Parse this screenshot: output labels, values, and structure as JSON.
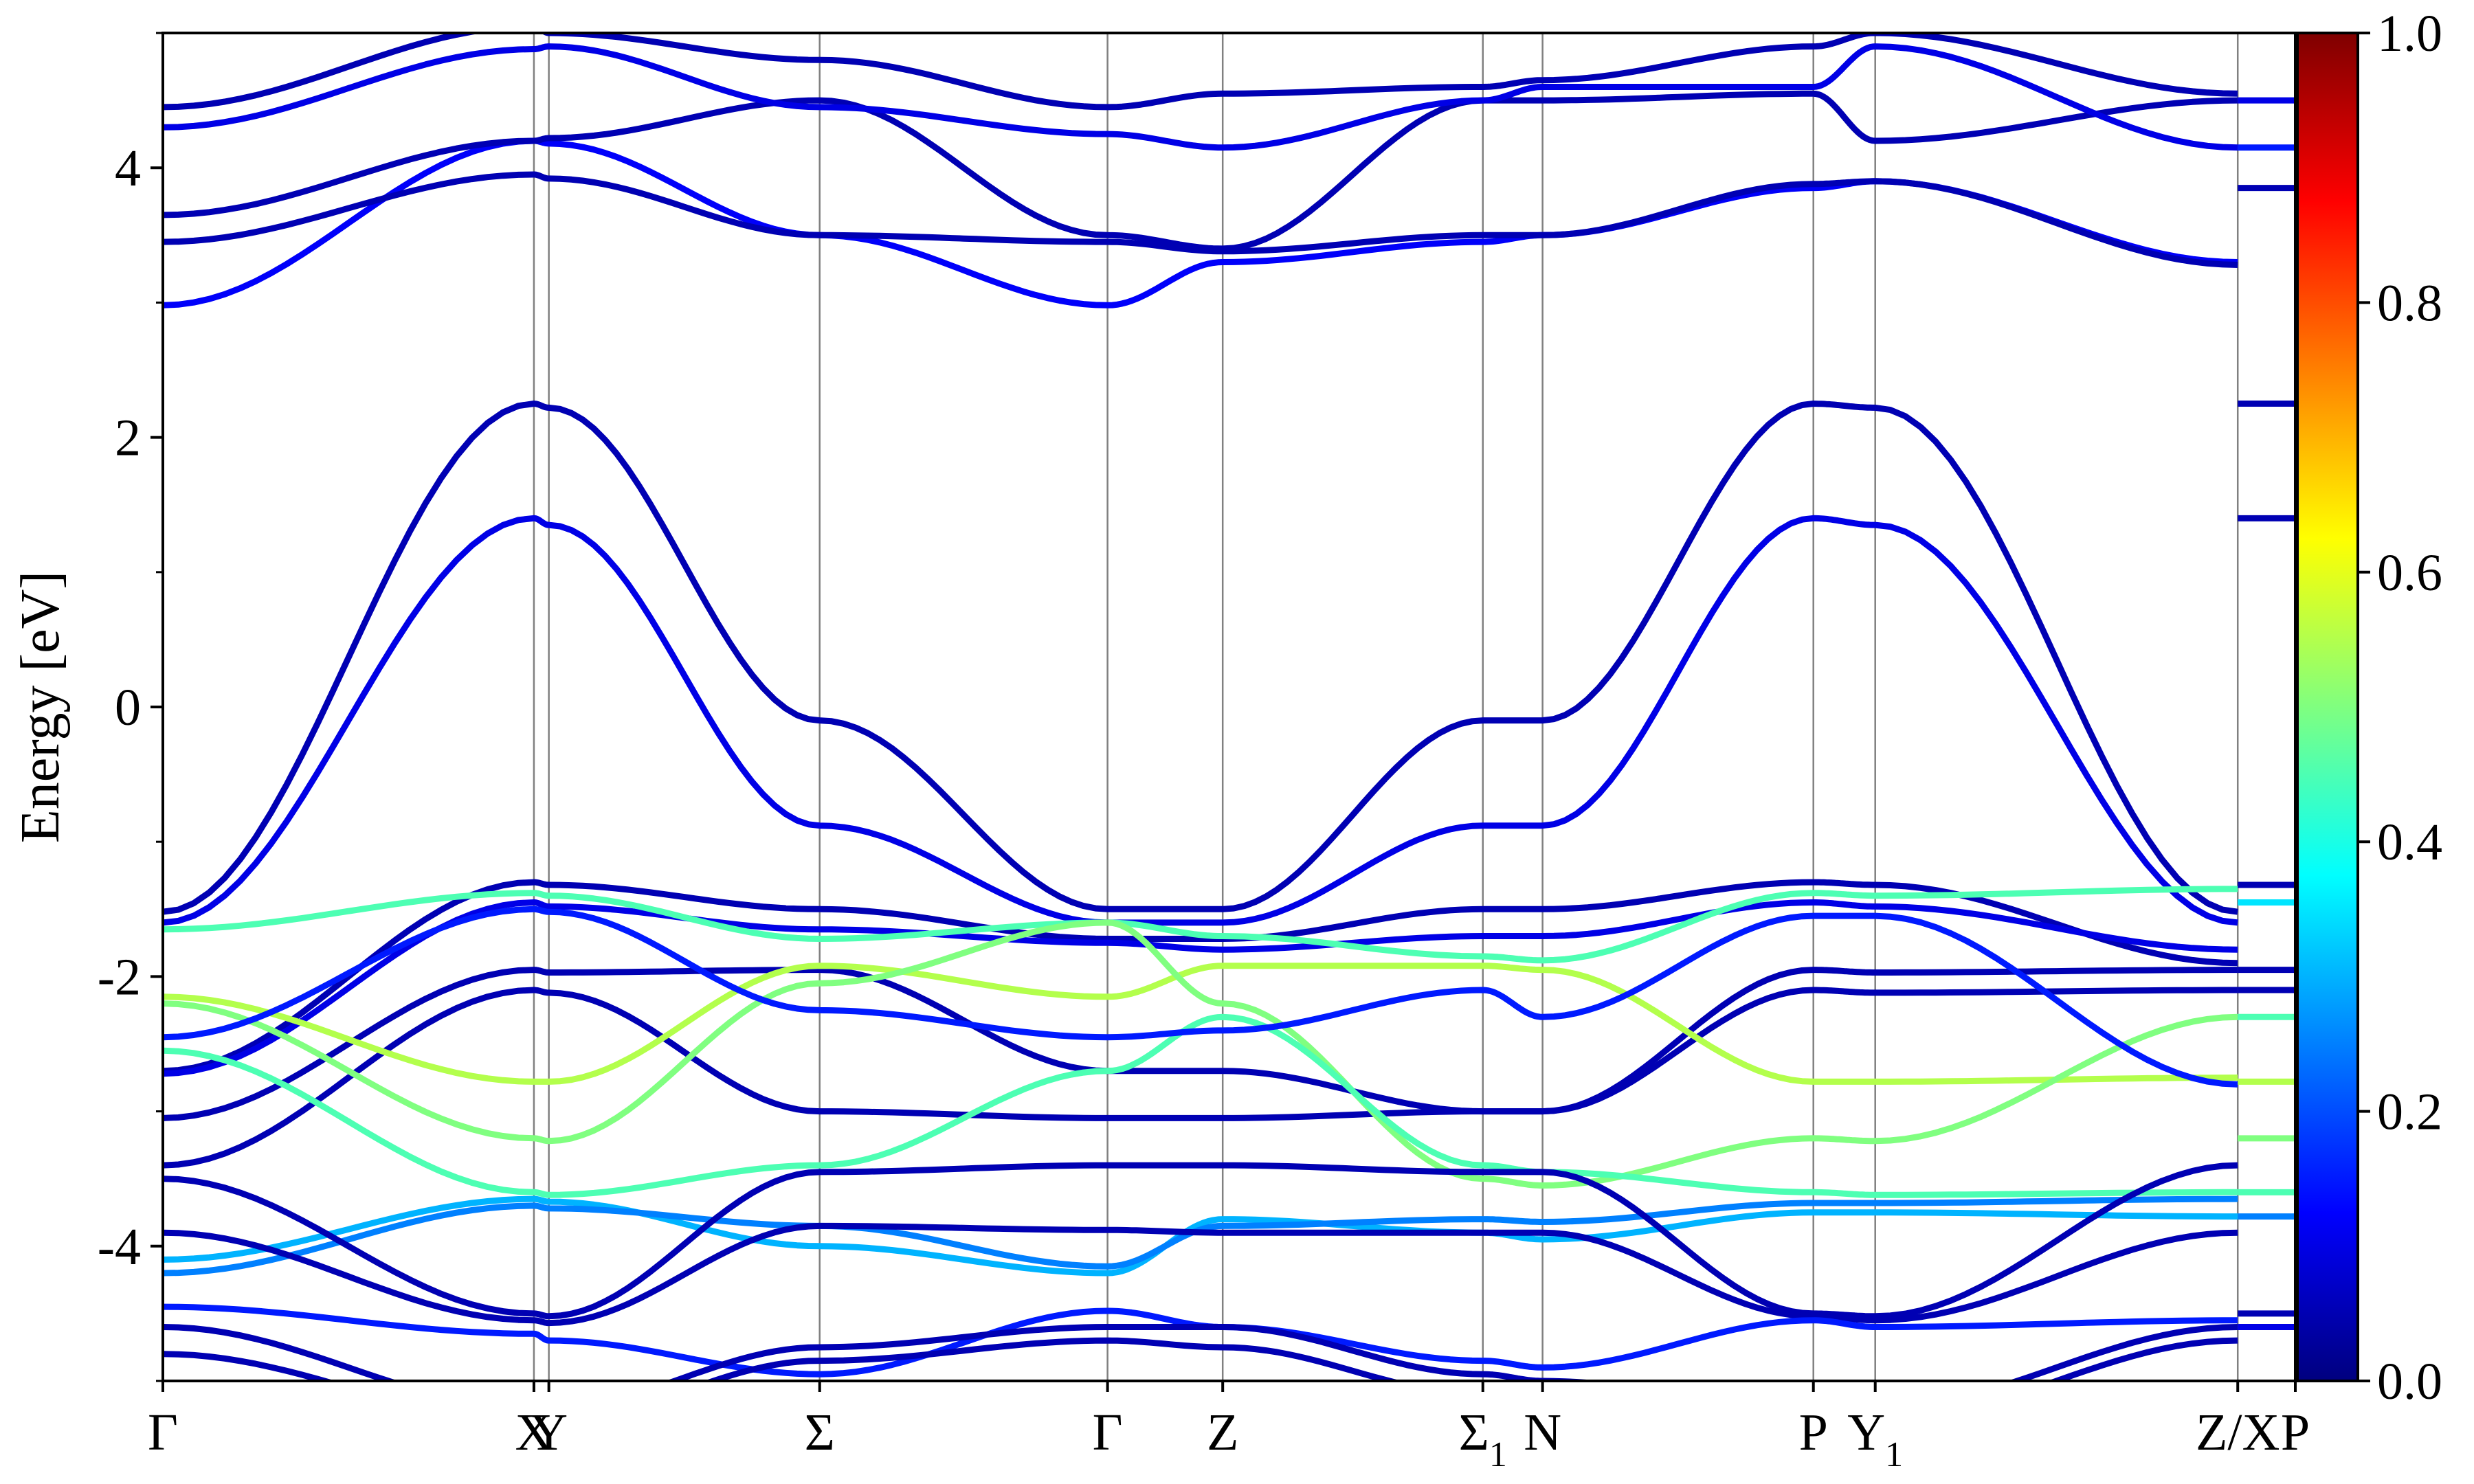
{
  "chart_data": {
    "type": "line",
    "title": "",
    "xlabel": "",
    "ylabel": "Energy [eV]",
    "ylim": [
      -5,
      5
    ],
    "yticks": [
      {
        "value": 4,
        "label": "4"
      },
      {
        "value": 2,
        "label": "2"
      },
      {
        "value": 0,
        "label": "0"
      },
      {
        "value": -2,
        "label": "-2"
      },
      {
        "value": -4,
        "label": "-4"
      }
    ],
    "yminor_ticks": [
      5,
      3,
      1,
      -1,
      -3,
      -5
    ],
    "kpath": [
      {
        "label": "Γ",
        "sub": "",
        "k": 0.0
      },
      {
        "label": "X",
        "sub": "",
        "k": 0.174
      },
      {
        "label": "Y",
        "sub": "",
        "k": 0.181
      },
      {
        "label": "Σ",
        "sub": "",
        "k": 0.308
      },
      {
        "label": "Γ",
        "sub": "",
        "k": 0.443
      },
      {
        "label": "Z",
        "sub": "",
        "k": 0.497
      },
      {
        "label": "Σ",
        "sub": "1",
        "k": 0.619
      },
      {
        "label": "N",
        "sub": "",
        "k": 0.647
      },
      {
        "label": "P",
        "sub": "",
        "k": 0.774
      },
      {
        "label": "Y",
        "sub": "1",
        "k": 0.803
      },
      {
        "label": "Z/X",
        "sub": "",
        "k": 0.973
      },
      {
        "label": "P",
        "sub": "",
        "k": 1.0
      }
    ],
    "colorbar": {
      "min": 0.0,
      "max": 1.0,
      "colormap": "jet",
      "ticks": [
        {
          "value": 0.0,
          "label": "0.0"
        },
        {
          "value": 0.2,
          "label": "0.2"
        },
        {
          "value": 0.4,
          "label": "0.4"
        },
        {
          "value": 0.6,
          "label": "0.6"
        },
        {
          "value": 0.8,
          "label": "0.8"
        },
        {
          "value": 1.0,
          "label": "1.0"
        }
      ]
    },
    "colors": {
      "jet_0": "#00007f",
      "jet_0125": "#0000ff",
      "jet_0375": "#00ffff",
      "jet_0625": "#ffff00",
      "jet_0875": "#ff0000",
      "jet_1": "#7f0000",
      "grid": "#808080",
      "axes": "#000000"
    },
    "bands": [
      {
        "w": 0.05,
        "k": [
          0,
          0.174,
          0.181,
          0.308,
          0.443,
          0.497,
          0.619,
          0.647,
          0.774,
          0.803,
          0.973
        ],
        "e": [
          -1.52,
          2.25,
          2.22,
          -0.1,
          -1.5,
          -1.5,
          -0.1,
          -0.1,
          2.25,
          2.22,
          -1.52
        ]
      },
      {
        "w": 0.1,
        "k": [
          0,
          0.174,
          0.181,
          0.308,
          0.443,
          0.497,
          0.619,
          0.647,
          0.774,
          0.803,
          0.973
        ],
        "e": [
          -1.6,
          1.4,
          1.35,
          -0.88,
          -1.6,
          -1.6,
          -0.88,
          -0.88,
          1.4,
          1.35,
          -1.6
        ]
      },
      {
        "w": 0.05,
        "k": [
          0,
          0.174,
          0.181,
          0.308,
          0.443,
          0.497,
          0.619,
          0.647,
          0.774,
          0.803,
          0.973
        ],
        "e": [
          -2.7,
          -1.3,
          -1.32,
          -1.5,
          -1.72,
          -1.72,
          -1.5,
          -1.5,
          -1.3,
          -1.32,
          -1.9
        ]
      },
      {
        "w": 0.1,
        "k": [
          0,
          0.174,
          0.181,
          0.308,
          0.443,
          0.497,
          0.619,
          0.647,
          0.774,
          0.803,
          0.973
        ],
        "e": [
          -2.72,
          -1.45,
          -1.48,
          -1.65,
          -1.75,
          -1.8,
          -1.7,
          -1.7,
          -1.45,
          -1.48,
          -1.8
        ]
      },
      {
        "w": 0.05,
        "k": [
          0,
          0.174,
          0.181,
          0.308,
          0.443,
          0.497,
          0.619,
          0.647,
          0.774,
          0.803,
          0.973
        ],
        "e": [
          -3.05,
          -1.95,
          -1.97,
          -1.95,
          -2.7,
          -2.7,
          -3.0,
          -3.0,
          -1.95,
          -1.97,
          -1.95
        ]
      },
      {
        "w": 0.05,
        "k": [
          0,
          0.174,
          0.181,
          0.308,
          0.443,
          0.497,
          0.619,
          0.647,
          0.774,
          0.803,
          0.973
        ],
        "e": [
          -3.4,
          -2.1,
          -2.12,
          -3.0,
          -3.05,
          -3.05,
          -3.0,
          -3.0,
          -2.1,
          -2.12,
          -2.1
        ]
      },
      {
        "w": 0.45,
        "k": [
          0,
          0.174,
          0.181,
          0.308,
          0.443,
          0.497,
          0.619,
          0.647,
          0.774,
          0.803,
          0.973
        ],
        "e": [
          -1.65,
          -1.38,
          -1.4,
          -1.72,
          -1.6,
          -1.7,
          -1.85,
          -1.88,
          -1.38,
          -1.4,
          -1.35
        ]
      },
      {
        "w": 0.55,
        "k": [
          0,
          0.174,
          0.181,
          0.308,
          0.443,
          0.497,
          0.619,
          0.647,
          0.774,
          0.803,
          0.973
        ],
        "e": [
          -2.15,
          -2.78,
          -2.78,
          -1.92,
          -2.15,
          -1.92,
          -1.92,
          -1.95,
          -2.78,
          -2.78,
          -2.75
        ]
      },
      {
        "w": 0.5,
        "k": [
          0,
          0.174,
          0.181,
          0.308,
          0.443,
          0.497,
          0.619,
          0.647,
          0.774,
          0.803,
          0.973
        ],
        "e": [
          -2.2,
          -3.2,
          -3.22,
          -2.05,
          -1.6,
          -2.2,
          -3.5,
          -3.55,
          -3.2,
          -3.22,
          -2.3
        ]
      },
      {
        "w": 0.45,
        "k": [
          0,
          0.174,
          0.181,
          0.308,
          0.443,
          0.497,
          0.619,
          0.647,
          0.774,
          0.803,
          0.973
        ],
        "e": [
          -2.55,
          -3.6,
          -3.62,
          -3.4,
          -2.7,
          -2.3,
          -3.4,
          -3.45,
          -3.6,
          -3.62,
          -3.6
        ]
      },
      {
        "w": 0.3,
        "k": [
          0,
          0.174,
          0.181,
          0.308,
          0.443,
          0.497,
          0.619,
          0.647,
          0.774,
          0.803,
          0.973
        ],
        "e": [
          -4.1,
          -3.65,
          -3.67,
          -4.0,
          -4.2,
          -3.8,
          -3.9,
          -3.95,
          -3.75,
          -3.75,
          -3.78
        ]
      },
      {
        "w": 0.25,
        "k": [
          0,
          0.174,
          0.181,
          0.308,
          0.443,
          0.497,
          0.619,
          0.647,
          0.774,
          0.803,
          0.973
        ],
        "e": [
          -4.2,
          -3.7,
          -3.72,
          -3.85,
          -4.15,
          -3.85,
          -3.8,
          -3.82,
          -3.68,
          -3.68,
          -3.65
        ]
      },
      {
        "w": 0.15,
        "k": [
          0,
          0.174,
          0.181,
          0.308,
          0.443,
          0.497,
          0.619,
          0.647,
          0.774,
          0.803,
          0.973
        ],
        "e": [
          -2.45,
          -1.5,
          -1.52,
          -2.25,
          -2.45,
          -2.4,
          -2.1,
          -2.3,
          -1.55,
          -1.55,
          -2.8
        ]
      },
      {
        "w": 0.05,
        "k": [
          0,
          0.174,
          0.181,
          0.308,
          0.443,
          0.497,
          0.619,
          0.647,
          0.774,
          0.803,
          0.973
        ],
        "e": [
          -3.5,
          -4.5,
          -4.52,
          -3.45,
          -3.4,
          -3.4,
          -3.45,
          -3.45,
          -4.5,
          -4.52,
          -3.4
        ]
      },
      {
        "w": 0.05,
        "k": [
          0,
          0.174,
          0.181,
          0.308,
          0.443,
          0.497,
          0.619,
          0.647,
          0.774,
          0.803,
          0.973
        ],
        "e": [
          -3.9,
          -4.55,
          -4.57,
          -3.85,
          -3.88,
          -3.9,
          -3.9,
          -3.9,
          -4.52,
          -4.55,
          -3.9
        ]
      },
      {
        "w": 0.15,
        "k": [
          0,
          0.174,
          0.181,
          0.308,
          0.443,
          0.497,
          0.619,
          0.647,
          0.774,
          0.803,
          0.973
        ],
        "e": [
          -4.45,
          -4.65,
          -4.7,
          -4.95,
          -4.48,
          -4.6,
          -4.85,
          -4.9,
          -4.55,
          -4.6,
          -4.55
        ]
      },
      {
        "w": 0.05,
        "k": [
          0,
          0.174,
          0.181,
          0.308,
          0.443,
          0.497,
          0.619,
          0.647,
          0.774,
          0.803,
          0.973
        ],
        "e": [
          -4.6,
          -5.2,
          -5.2,
          -4.75,
          -4.6,
          -4.6,
          -4.95,
          -5.0,
          -5.2,
          -5.2,
          -4.6
        ]
      },
      {
        "w": 0.05,
        "k": [
          0,
          0.174,
          0.181,
          0.308,
          0.443,
          0.497,
          0.619,
          0.647,
          0.774,
          0.803,
          0.973
        ],
        "e": [
          -4.8,
          -5.3,
          -5.3,
          -4.85,
          -4.7,
          -4.75,
          -5.1,
          -5.1,
          -5.3,
          -5.3,
          -4.7
        ]
      },
      {
        "w": 0.12,
        "k": [
          0,
          0.174,
          0.181,
          0.308,
          0.443,
          0.497,
          0.619,
          0.647,
          0.774,
          0.803,
          0.973
        ],
        "e": [
          2.98,
          4.2,
          4.18,
          3.5,
          2.98,
          3.3,
          3.45,
          3.5,
          3.85,
          3.9,
          3.3
        ]
      },
      {
        "w": 0.05,
        "k": [
          0,
          0.174,
          0.181,
          0.308,
          0.443,
          0.497,
          0.619,
          0.647,
          0.774,
          0.803,
          0.973
        ],
        "e": [
          3.45,
          3.95,
          3.92,
          3.5,
          3.45,
          3.38,
          3.5,
          3.5,
          3.88,
          3.9,
          3.28
        ]
      },
      {
        "w": 0.05,
        "k": [
          0,
          0.174,
          0.181,
          0.308,
          0.443,
          0.497,
          0.619,
          0.647,
          0.774,
          0.803,
          0.973
        ],
        "e": [
          3.65,
          4.2,
          4.22,
          4.5,
          3.5,
          3.4,
          4.5,
          4.5,
          4.55,
          4.2,
          4.5
        ]
      },
      {
        "w": 0.1,
        "k": [
          0,
          0.174,
          0.181,
          0.308,
          0.443,
          0.497,
          0.619,
          0.647,
          0.774,
          0.803,
          0.973
        ],
        "e": [
          4.3,
          4.88,
          4.9,
          4.45,
          4.25,
          4.15,
          4.5,
          4.6,
          4.6,
          4.9,
          4.15
        ]
      },
      {
        "w": 0.05,
        "k": [
          0,
          0.174,
          0.181,
          0.308,
          0.443,
          0.497,
          0.619,
          0.647,
          0.774,
          0.803,
          0.973
        ],
        "e": [
          4.45,
          5.05,
          5.0,
          4.8,
          4.45,
          4.55,
          4.6,
          4.65,
          4.9,
          5.0,
          4.55
        ]
      }
    ],
    "right_segment_levels": [
      {
        "e": 2.25,
        "w": 0.05
      },
      {
        "e": 1.4,
        "w": 0.05
      },
      {
        "e": -1.32,
        "w": 0.05
      },
      {
        "e": -1.45,
        "w": 0.35
      },
      {
        "e": -1.95,
        "w": 0.05
      },
      {
        "e": -2.1,
        "w": 0.05
      },
      {
        "e": -2.3,
        "w": 0.45
      },
      {
        "e": -2.78,
        "w": 0.55
      },
      {
        "e": -3.2,
        "w": 0.5
      },
      {
        "e": -3.6,
        "w": 0.45
      },
      {
        "e": -3.78,
        "w": 0.25
      },
      {
        "e": -4.5,
        "w": 0.05
      },
      {
        "e": -4.6,
        "w": 0.1
      },
      {
        "e": 3.85,
        "w": 0.05
      },
      {
        "e": 4.5,
        "w": 0.1
      },
      {
        "e": 4.15,
        "w": 0.15
      }
    ]
  }
}
